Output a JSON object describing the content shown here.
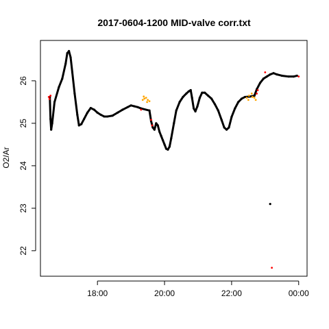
{
  "chart_data": {
    "type": "scatter",
    "title": "2017-0604-1200 MID-valve corr.txt",
    "xlabel": "",
    "ylabel": "O2/Ar",
    "x_unit": "hours",
    "xlim": [
      16.3,
      24.25
    ],
    "ylim": [
      21.4,
      26.95
    ],
    "x_ticks": [
      {
        "value": 18,
        "label": "18:00"
      },
      {
        "value": 20,
        "label": "20:00"
      },
      {
        "value": 22,
        "label": "22:00"
      },
      {
        "value": 24,
        "label": "00:00"
      }
    ],
    "y_ticks": [
      {
        "value": 22,
        "label": "22"
      },
      {
        "value": 23,
        "label": "23"
      },
      {
        "value": 24,
        "label": "24"
      },
      {
        "value": 25,
        "label": "25"
      },
      {
        "value": 26,
        "label": "26"
      }
    ],
    "grid": false,
    "series": [
      {
        "color": "#000000",
        "points": [
          [
            16.58,
            25.62
          ],
          [
            16.6,
            25.1
          ],
          [
            16.62,
            24.85
          ],
          [
            16.65,
            25.0
          ],
          [
            16.72,
            25.5
          ],
          [
            16.85,
            25.85
          ],
          [
            16.95,
            26.05
          ],
          [
            17.05,
            26.4
          ],
          [
            17.1,
            26.65
          ],
          [
            17.15,
            26.7
          ],
          [
            17.2,
            26.55
          ],
          [
            17.25,
            26.2
          ],
          [
            17.32,
            25.7
          ],
          [
            17.4,
            25.2
          ],
          [
            17.45,
            24.95
          ],
          [
            17.52,
            24.98
          ],
          [
            17.6,
            25.1
          ],
          [
            17.7,
            25.25
          ],
          [
            17.8,
            25.36
          ],
          [
            17.9,
            25.32
          ],
          [
            18.0,
            25.25
          ],
          [
            18.1,
            25.2
          ],
          [
            18.2,
            25.16
          ],
          [
            18.3,
            25.16
          ],
          [
            18.45,
            25.18
          ],
          [
            18.6,
            25.25
          ],
          [
            18.75,
            25.32
          ],
          [
            18.9,
            25.38
          ],
          [
            19.0,
            25.42
          ],
          [
            19.1,
            25.4
          ],
          [
            19.2,
            25.38
          ],
          [
            19.3,
            25.35
          ],
          [
            19.55,
            25.3
          ],
          [
            19.6,
            25.05
          ],
          [
            19.65,
            24.9
          ],
          [
            19.7,
            24.85
          ],
          [
            19.75,
            25.0
          ],
          [
            19.8,
            24.95
          ],
          [
            19.85,
            24.8
          ],
          [
            19.9,
            24.7
          ],
          [
            19.95,
            24.6
          ],
          [
            20.0,
            24.5
          ],
          [
            20.05,
            24.4
          ],
          [
            20.1,
            24.38
          ],
          [
            20.15,
            24.45
          ],
          [
            20.2,
            24.65
          ],
          [
            20.28,
            25.0
          ],
          [
            20.35,
            25.3
          ],
          [
            20.45,
            25.5
          ],
          [
            20.55,
            25.62
          ],
          [
            20.65,
            25.7
          ],
          [
            20.72,
            25.75
          ],
          [
            20.78,
            25.78
          ],
          [
            20.82,
            25.6
          ],
          [
            20.87,
            25.35
          ],
          [
            20.92,
            25.28
          ],
          [
            20.98,
            25.4
          ],
          [
            21.05,
            25.6
          ],
          [
            21.12,
            25.72
          ],
          [
            21.2,
            25.72
          ],
          [
            21.3,
            25.65
          ],
          [
            21.4,
            25.58
          ],
          [
            21.5,
            25.45
          ],
          [
            21.6,
            25.3
          ],
          [
            21.7,
            25.08
          ],
          [
            21.78,
            24.9
          ],
          [
            21.85,
            24.85
          ],
          [
            21.92,
            24.9
          ],
          [
            22.0,
            25.15
          ],
          [
            22.1,
            25.35
          ],
          [
            22.2,
            25.5
          ],
          [
            22.3,
            25.58
          ],
          [
            22.4,
            25.62
          ],
          [
            22.55,
            25.63
          ],
          [
            22.68,
            25.65
          ],
          [
            22.75,
            25.8
          ],
          [
            22.85,
            25.95
          ],
          [
            22.95,
            26.05
          ],
          [
            23.05,
            26.1
          ],
          [
            23.15,
            26.15
          ],
          [
            23.25,
            26.18
          ],
          [
            23.35,
            26.15
          ],
          [
            23.5,
            26.12
          ],
          [
            23.7,
            26.1
          ],
          [
            23.85,
            26.1
          ],
          [
            23.95,
            26.12
          ],
          [
            23.15,
            23.1
          ]
        ]
      },
      {
        "color": "#ffa500",
        "points": [
          [
            19.35,
            25.55
          ],
          [
            19.4,
            25.58
          ],
          [
            19.45,
            25.6
          ],
          [
            19.5,
            25.55
          ],
          [
            19.55,
            25.52
          ],
          [
            19.38,
            25.63
          ],
          [
            19.48,
            25.5
          ],
          [
            22.45,
            25.6
          ],
          [
            22.52,
            25.65
          ],
          [
            22.6,
            25.7
          ],
          [
            22.68,
            25.6
          ],
          [
            22.72,
            25.55
          ],
          [
            22.5,
            25.55
          ],
          [
            22.62,
            25.62
          ]
        ]
      },
      {
        "color": "#ff0000",
        "points": [
          [
            16.55,
            25.62
          ],
          [
            16.57,
            25.57
          ],
          [
            16.6,
            25.65
          ],
          [
            19.3,
            25.32
          ],
          [
            19.6,
            25.08
          ],
          [
            19.63,
            24.95
          ],
          [
            22.75,
            25.7
          ],
          [
            22.78,
            25.78
          ],
          [
            23.0,
            26.2
          ],
          [
            24.0,
            26.1
          ],
          [
            23.2,
            21.6
          ]
        ]
      }
    ]
  }
}
